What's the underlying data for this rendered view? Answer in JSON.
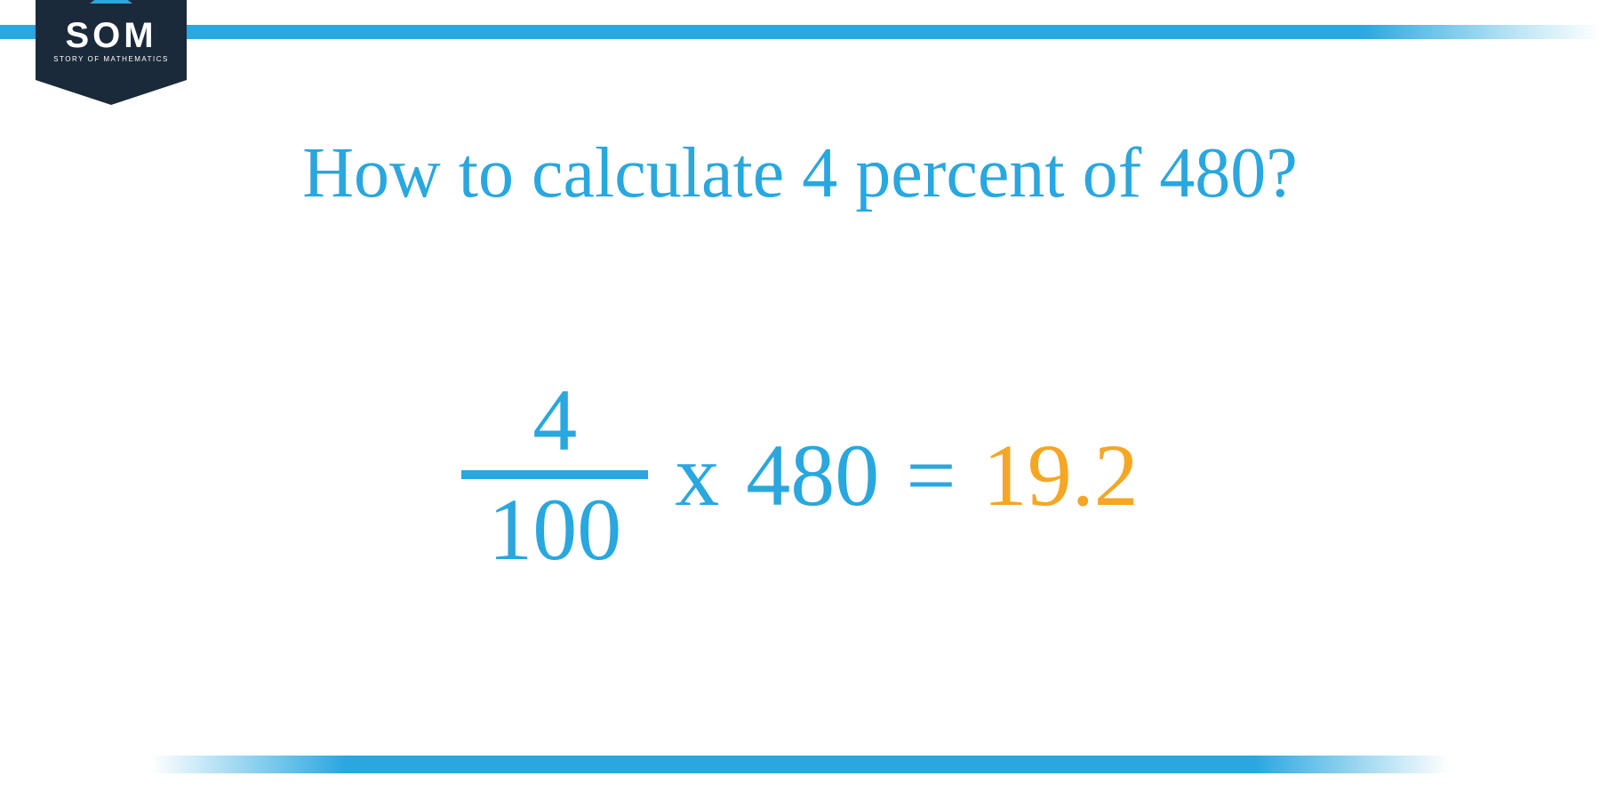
{
  "colors": {
    "primary_blue": "#29a7df",
    "dark_navy": "#1a2a3a",
    "result_orange": "#f5a623",
    "white": "#ffffff"
  },
  "logo": {
    "acronym": "SOM",
    "subtitle": "STORY OF MATHEMATICS"
  },
  "title": {
    "text": "How to calculate 4 percent of 480?",
    "fontsize": 80,
    "color": "#29a7df"
  },
  "equation": {
    "fraction": {
      "numerator": "4",
      "denominator": "100",
      "bar_color": "#29a7df",
      "color": "#29a7df"
    },
    "operator_times": "x",
    "multiplier": "480",
    "operator_equals": "=",
    "result": "19.2",
    "fontsize": 100,
    "multiplier_color": "#29a7df",
    "equals_color": "#29a7df",
    "result_color": "#f5a623"
  },
  "bars": {
    "top_height": 16,
    "bottom_height": 20,
    "gradient_color": "#29a7df"
  }
}
